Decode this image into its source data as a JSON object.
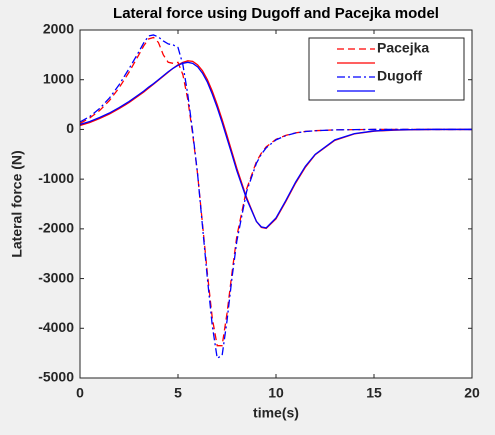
{
  "chart_data": {
    "type": "line",
    "title": "Lateral force using Dugoff and Pacejka model",
    "xlabel": "time(s)",
    "ylabel": "Lateral force (N)",
    "x": [
      0,
      0.5,
      1,
      1.5,
      2,
      2.5,
      3,
      3.25,
      3.5,
      3.75,
      4,
      4.25,
      4.5,
      4.75,
      5,
      5.25,
      5.5,
      5.75,
      6,
      6.25,
      6.5,
      6.75,
      7,
      7.25,
      7.5,
      7.75,
      8,
      8.5,
      9,
      9.25,
      9.5,
      10,
      10.5,
      11,
      11.5,
      12,
      13,
      14,
      15,
      16,
      17,
      18,
      19,
      20
    ],
    "series": [
      {
        "name": "Pacejka",
        "color": "#ff0000",
        "linestyle": "--",
        "values": [
          120,
          230,
          380,
          580,
          840,
          1150,
          1500,
          1680,
          1820,
          1850,
          1750,
          1500,
          1350,
          1330,
          1350,
          1100,
          600,
          -100,
          -900,
          -1900,
          -2900,
          -3800,
          -4350,
          -4350,
          -3700,
          -2900,
          -2150,
          -1200,
          -650,
          -480,
          -350,
          -200,
          -120,
          -70,
          -40,
          -25,
          -10,
          -4,
          0,
          0,
          0,
          0,
          0,
          0
        ]
      },
      {
        "color": "#ff0000",
        "linestyle": "-",
        "values": [
          80,
          140,
          220,
          310,
          420,
          540,
          680,
          750,
          830,
          910,
          990,
          1070,
          1150,
          1230,
          1300,
          1350,
          1380,
          1370,
          1300,
          1180,
          1000,
          770,
          500,
          200,
          -120,
          -450,
          -780,
          -1370,
          -1850,
          -1970,
          -1990,
          -1800,
          -1450,
          -1080,
          -760,
          -510,
          -220,
          -90,
          -35,
          -15,
          -5,
          0,
          0,
          0
        ]
      },
      {
        "name": "Dugoff",
        "color": "#0000ff",
        "linestyle": "-.",
        "values": [
          150,
          260,
          420,
          630,
          900,
          1220,
          1560,
          1740,
          1880,
          1900,
          1860,
          1780,
          1720,
          1700,
          1650,
          1300,
          700,
          -50,
          -900,
          -1950,
          -3000,
          -3950,
          -4600,
          -4550,
          -3850,
          -3000,
          -2250,
          -1250,
          -680,
          -500,
          -370,
          -210,
          -125,
          -72,
          -42,
          -26,
          -10,
          -4,
          0,
          0,
          0,
          0,
          0,
          0
        ]
      },
      {
        "color": "#0000ff",
        "linestyle": "-",
        "values": [
          100,
          160,
          240,
          330,
          440,
          560,
          700,
          770,
          850,
          920,
          1000,
          1080,
          1160,
          1230,
          1290,
          1330,
          1350,
          1330,
          1260,
          1130,
          950,
          710,
          440,
          140,
          -180,
          -500,
          -830,
          -1400,
          -1850,
          -1960,
          -1980,
          -1780,
          -1430,
          -1060,
          -740,
          -500,
          -210,
          -85,
          -30,
          -12,
          -4,
          0,
          0,
          0
        ]
      }
    ],
    "xlim": [
      0,
      20
    ],
    "xticks": [
      0,
      5,
      10,
      15,
      20
    ],
    "ylim": [
      -5000,
      2000
    ],
    "yticks": [
      -5000,
      -4000,
      -3000,
      -2000,
      -1000,
      0,
      1000,
      2000
    ],
    "legend": "top-right",
    "grid": false
  }
}
